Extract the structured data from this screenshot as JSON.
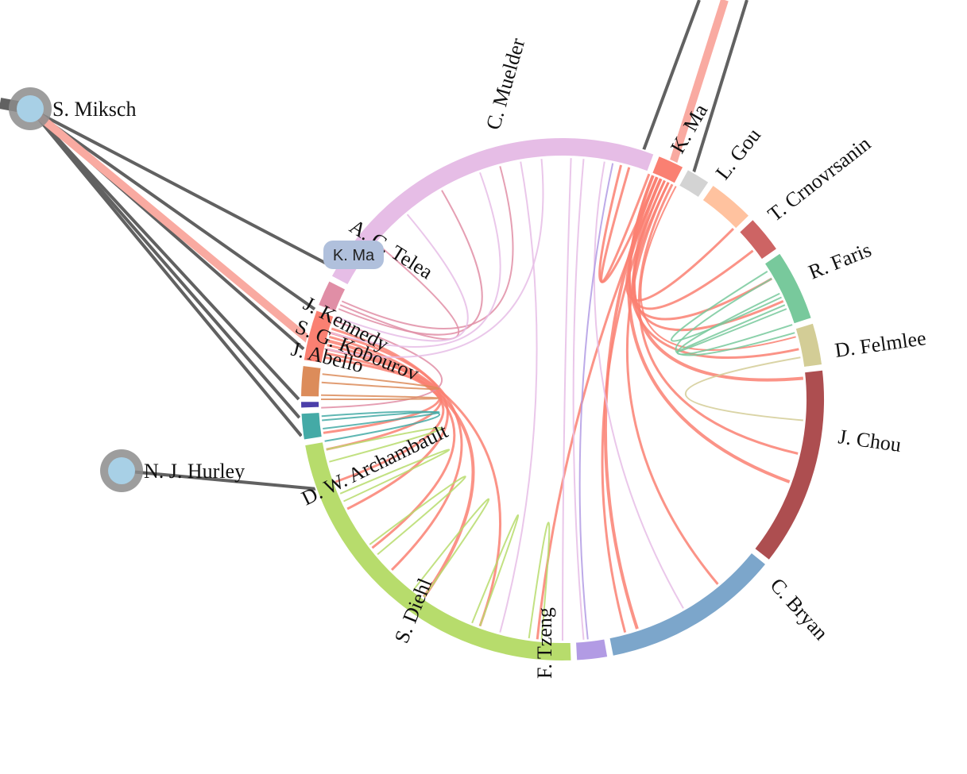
{
  "diagram": {
    "ring_segments": [
      {
        "name": "C. Muelder",
        "color": "#e6bde6"
      },
      {
        "name": "K. Ma",
        "color": "#fa8072"
      },
      {
        "name": "L. Gou",
        "color": "#d3d3d3"
      },
      {
        "name": "T. Crnovrsanin",
        "color": "#ffc29f"
      },
      {
        "name": "R. Faris",
        "color": "#cd6464"
      },
      {
        "name": "D. Felmlee",
        "color": "#78c99c"
      },
      {
        "name": "J. Chou",
        "color": "#d3cd96"
      },
      {
        "name": "C. Bryan",
        "color": "#ad4e50"
      },
      {
        "name": "F. Tzeng",
        "color": "#7ca6cb"
      },
      {
        "name": "S. Diehl",
        "color": "#b29be4"
      },
      {
        "name": "D. W. Archambault",
        "color": "#b7dc6c"
      },
      {
        "name": "J. Abello",
        "color": "#44aaa6"
      },
      {
        "name": "S. G. Kobourov",
        "color": "#4b3fa9"
      },
      {
        "name": "J. Kennedy",
        "color": "#dc8c5a"
      },
      {
        "name": "K. Ma",
        "color": "#fa8072"
      },
      {
        "name": "A. C. Telea",
        "color": "#e08ea6"
      }
    ],
    "external_nodes": [
      {
        "name": "S. Miksch",
        "fill": "#a8d0e6",
        "halo": "#8c8c8c"
      },
      {
        "name": "N. J. Hurley",
        "fill": "#a8d0e6",
        "halo": "#8c8c8c"
      }
    ],
    "tooltip": {
      "text": "K. Ma",
      "background": "#b0c0dc"
    },
    "link_color": "#616161",
    "highlight_link_color": "#f9aaa1"
  }
}
